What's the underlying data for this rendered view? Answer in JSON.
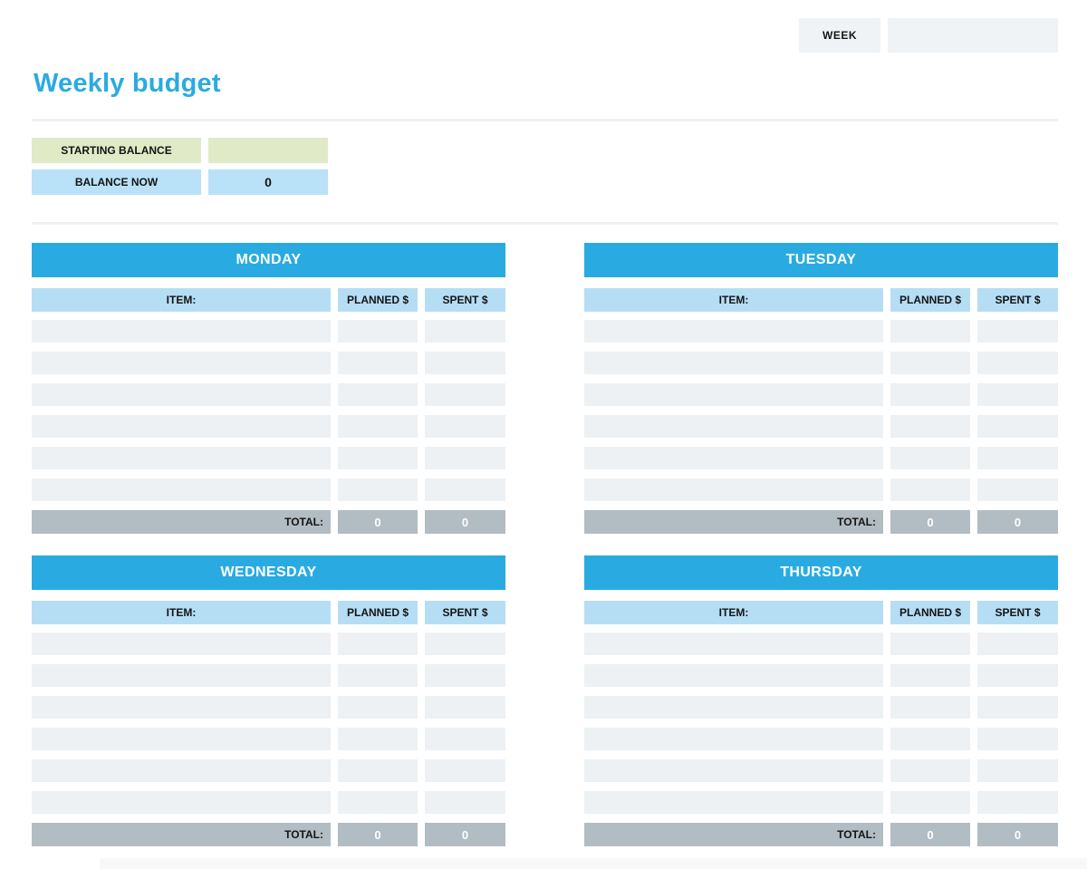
{
  "header": {
    "week_label": "WEEK",
    "week_value": ""
  },
  "title": "Weekly budget",
  "balance": {
    "starting_label": "STARTING BALANCE",
    "starting_value": "",
    "now_label": "BALANCE NOW",
    "now_value": "0"
  },
  "columns": {
    "item": "ITEM:",
    "planned": "PLANNED $",
    "spent": "SPENT $"
  },
  "total_label": "TOTAL:",
  "days": [
    {
      "name": "MONDAY",
      "rows": [
        {
          "item": "",
          "planned": "",
          "spent": ""
        },
        {
          "item": "",
          "planned": "",
          "spent": ""
        },
        {
          "item": "",
          "planned": "",
          "spent": ""
        },
        {
          "item": "",
          "planned": "",
          "spent": ""
        },
        {
          "item": "",
          "planned": "",
          "spent": ""
        },
        {
          "item": "",
          "planned": "",
          "spent": ""
        }
      ],
      "totals": {
        "planned": "0",
        "spent": "0"
      }
    },
    {
      "name": "TUESDAY",
      "rows": [
        {
          "item": "",
          "planned": "",
          "spent": ""
        },
        {
          "item": "",
          "planned": "",
          "spent": ""
        },
        {
          "item": "",
          "planned": "",
          "spent": ""
        },
        {
          "item": "",
          "planned": "",
          "spent": ""
        },
        {
          "item": "",
          "planned": "",
          "spent": ""
        },
        {
          "item": "",
          "planned": "",
          "spent": ""
        }
      ],
      "totals": {
        "planned": "0",
        "spent": "0"
      }
    },
    {
      "name": "WEDNESDAY",
      "rows": [
        {
          "item": "",
          "planned": "",
          "spent": ""
        },
        {
          "item": "",
          "planned": "",
          "spent": ""
        },
        {
          "item": "",
          "planned": "",
          "spent": ""
        },
        {
          "item": "",
          "planned": "",
          "spent": ""
        },
        {
          "item": "",
          "planned": "",
          "spent": ""
        },
        {
          "item": "",
          "planned": "",
          "spent": ""
        }
      ],
      "totals": {
        "planned": "0",
        "spent": "0"
      }
    },
    {
      "name": "THURSDAY",
      "rows": [
        {
          "item": "",
          "planned": "",
          "spent": ""
        },
        {
          "item": "",
          "planned": "",
          "spent": ""
        },
        {
          "item": "",
          "planned": "",
          "spent": ""
        },
        {
          "item": "",
          "planned": "",
          "spent": ""
        },
        {
          "item": "",
          "planned": "",
          "spent": ""
        },
        {
          "item": "",
          "planned": "",
          "spent": ""
        }
      ],
      "totals": {
        "planned": "0",
        "spent": "0"
      }
    }
  ],
  "colors": {
    "accent_blue": "#29abe2",
    "light_blue": "#b5def5",
    "balance_blue": "#b9e1f7",
    "green": "#e0eac7",
    "row_gray": "#edf1f4",
    "total_gray": "#b2bcc3",
    "box_gray": "#f0f3f6"
  }
}
